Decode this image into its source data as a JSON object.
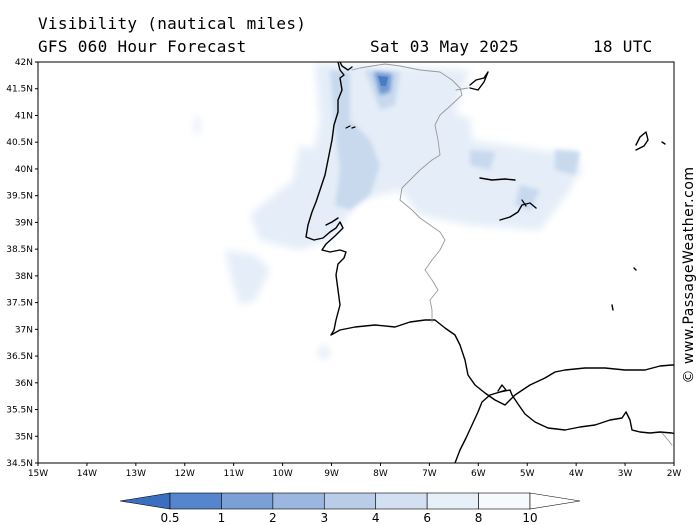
{
  "header": {
    "title": "Visibility (nautical miles)",
    "subtitle": "GFS 060 Hour Forecast",
    "date": "Sat 03 May 2025",
    "time": "18 UTC"
  },
  "map": {
    "lon_range": [
      -15,
      -2
    ],
    "lat_range": [
      34.5,
      42
    ],
    "lat_ticks": [
      "42N",
      "41.5N",
      "41N",
      "40.5N",
      "40N",
      "39.5N",
      "39N",
      "38.5N",
      "38N",
      "37.5N",
      "37N",
      "36.5N",
      "36N",
      "35.5N",
      "35N",
      "34.5N"
    ],
    "lon_ticks": [
      "15W",
      "14W",
      "13W",
      "12W",
      "11W",
      "10W",
      "9W",
      "8W",
      "7W",
      "6W",
      "5W",
      "4W",
      "3W",
      "2W"
    ],
    "coast_color": "#000000",
    "border_color": "#999999"
  },
  "colorbar": {
    "labels": [
      "0.5",
      "1",
      "2",
      "3",
      "4",
      "6",
      "8",
      "10"
    ],
    "colors": [
      "#3a6fbf",
      "#5585cc",
      "#7aa0d6",
      "#9bb7df",
      "#b9cde8",
      "#d3e0f1",
      "#e7eff8",
      "#f6f9fd",
      "#ffffff"
    ]
  },
  "credit": "© www.PassageWeather.com"
}
